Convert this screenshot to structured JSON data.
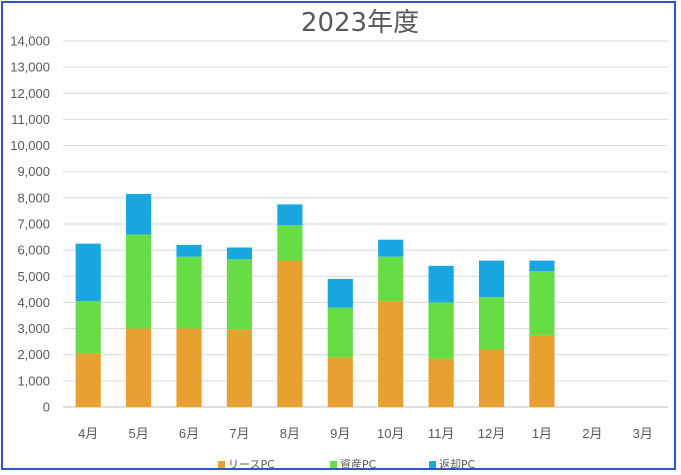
{
  "chart_data": {
    "type": "bar",
    "stacked": true,
    "title": "2023年度",
    "xlabel": "",
    "ylabel": "",
    "categories": [
      "4月",
      "5月",
      "6月",
      "7月",
      "8月",
      "9月",
      "10月",
      "11月",
      "12月",
      "1月",
      "2月",
      "3月"
    ],
    "ylim": [
      0,
      14000
    ],
    "yticks": [
      0,
      1000,
      2000,
      3000,
      4000,
      5000,
      6000,
      7000,
      8000,
      9000,
      10000,
      11000,
      12000,
      13000,
      14000
    ],
    "ytick_labels": [
      "0",
      "1,000",
      "2,000",
      "3,000",
      "4,000",
      "5,000",
      "6,000",
      "7,000",
      "8,000",
      "9,000",
      "10,000",
      "11,000",
      "12,000",
      "13,000",
      "14,000"
    ],
    "grid": true,
    "legend_position": "bottom",
    "series": [
      {
        "name": "リースPC",
        "color": "#E8A030",
        "values": [
          2050,
          3000,
          3000,
          2950,
          5600,
          1900,
          4050,
          1850,
          2200,
          2750,
          null,
          null
        ]
      },
      {
        "name": "資産PC",
        "color": "#66DD44",
        "values": [
          2000,
          3600,
          2750,
          2700,
          1350,
          1900,
          1700,
          2150,
          2000,
          2450,
          null,
          null
        ]
      },
      {
        "name": "返却PC",
        "color": "#1AA7E0",
        "values": [
          2200,
          1550,
          450,
          450,
          800,
          1100,
          650,
          1400,
          1400,
          400,
          null,
          null
        ]
      }
    ]
  }
}
